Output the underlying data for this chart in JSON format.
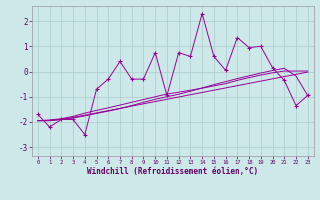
{
  "x": [
    0,
    1,
    2,
    3,
    4,
    5,
    6,
    7,
    8,
    9,
    10,
    11,
    12,
    13,
    14,
    15,
    16,
    17,
    18,
    19,
    20,
    21,
    22,
    23
  ],
  "y_main": [
    -1.7,
    -2.2,
    -1.9,
    -1.9,
    -2.5,
    -0.7,
    -0.3,
    0.4,
    -0.3,
    -0.3,
    0.75,
    -0.95,
    0.75,
    0.6,
    2.3,
    0.6,
    0.05,
    1.35,
    0.95,
    1.0,
    0.15,
    -0.35,
    -1.35,
    -0.95
  ],
  "y_line1": [
    -1.95,
    -1.95,
    -1.9,
    -1.82,
    -1.73,
    -1.64,
    -1.55,
    -1.46,
    -1.37,
    -1.28,
    -1.19,
    -1.1,
    -1.01,
    -0.92,
    -0.83,
    -0.74,
    -0.65,
    -0.56,
    -0.47,
    -0.38,
    -0.29,
    -0.2,
    -0.11,
    -0.02
  ],
  "y_line2": [
    -1.95,
    -1.92,
    -1.87,
    -1.78,
    -1.65,
    -1.54,
    -1.44,
    -1.33,
    -1.22,
    -1.11,
    -1.0,
    -0.89,
    -0.82,
    -0.74,
    -0.66,
    -0.57,
    -0.48,
    -0.35,
    -0.24,
    -0.14,
    -0.05,
    0.02,
    0.02,
    0.02
  ],
  "y_line3": [
    -1.95,
    -1.94,
    -1.9,
    -1.84,
    -1.76,
    -1.66,
    -1.57,
    -1.47,
    -1.35,
    -1.22,
    -1.1,
    -1.0,
    -0.9,
    -0.78,
    -0.65,
    -0.52,
    -0.4,
    -0.28,
    -0.17,
    -0.06,
    0.04,
    0.13,
    -0.18,
    -0.95
  ],
  "bg_color": "#cce8e8",
  "line_color": "#990099",
  "grid_color": "#aacccc",
  "xlabel": "Windchill (Refroidissement éolien,°C)",
  "ylim": [
    -3.35,
    2.6
  ],
  "xlim": [
    -0.5,
    23.5
  ],
  "yticks": [
    -3,
    -2,
    -1,
    0,
    1,
    2
  ],
  "xticks": [
    0,
    1,
    2,
    3,
    4,
    5,
    6,
    7,
    8,
    9,
    10,
    11,
    12,
    13,
    14,
    15,
    16,
    17,
    18,
    19,
    20,
    21,
    22,
    23
  ]
}
